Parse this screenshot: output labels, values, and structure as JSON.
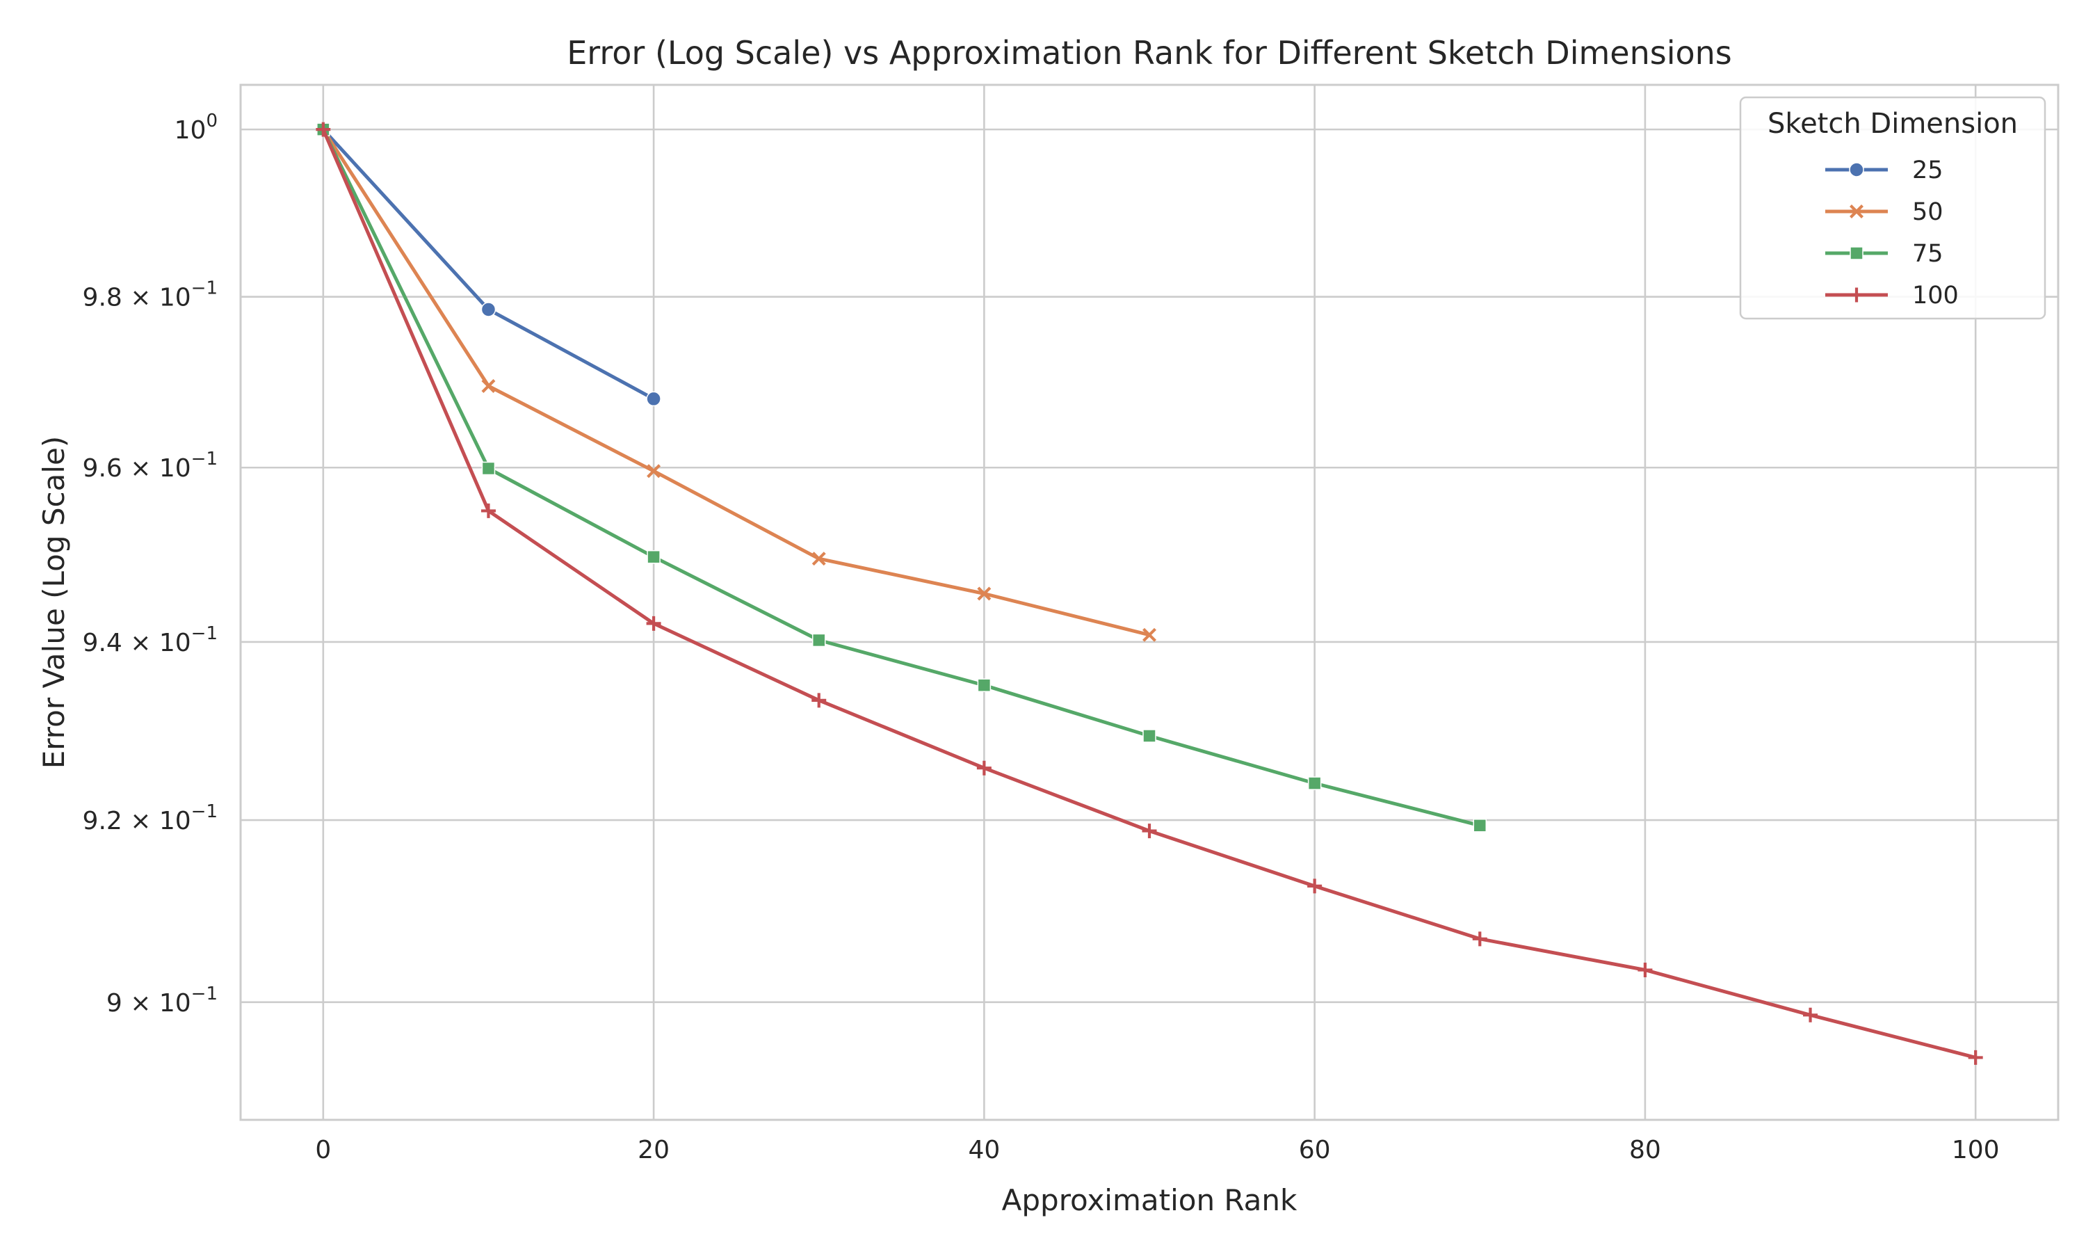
{
  "chart_data": {
    "type": "line",
    "title": "Error (Log Scale) vs Approximation Rank for Different Sketch Dimensions",
    "xlabel": "Approximation Rank",
    "ylabel": "Error Value (Log Scale)",
    "y_scale": "log",
    "xlim": [
      -5,
      105
    ],
    "ylim": [
      0.8873,
      1.0054
    ],
    "x_ticks": [
      0,
      20,
      40,
      60,
      80,
      100
    ],
    "y_ticks": [
      {
        "value": 1.0,
        "mantissa": "",
        "base": "10",
        "exponent": "0"
      },
      {
        "value": 0.98,
        "mantissa": "9.8",
        "base": "10",
        "exponent": "−1"
      },
      {
        "value": 0.96,
        "mantissa": "9.6",
        "base": "10",
        "exponent": "−1"
      },
      {
        "value": 0.94,
        "mantissa": "9.4",
        "base": "10",
        "exponent": "−1"
      },
      {
        "value": 0.92,
        "mantissa": "9.2",
        "base": "10",
        "exponent": "−1"
      },
      {
        "value": 0.9,
        "mantissa": "9",
        "base": "10",
        "exponent": "−1"
      }
    ],
    "grid": true,
    "legend": {
      "title": "Sketch Dimension",
      "position": "top-right"
    },
    "series": [
      {
        "name": "25",
        "color": "#4c72b0",
        "marker": "circle",
        "x": [
          0,
          10,
          20
        ],
        "y": [
          1.0,
          0.9785,
          0.968
        ]
      },
      {
        "name": "50",
        "color": "#dd8452",
        "marker": "x",
        "x": [
          0,
          10,
          20,
          30,
          40,
          50
        ],
        "y": [
          1.0,
          0.9695,
          0.9596,
          0.9495,
          0.9455,
          0.9408
        ]
      },
      {
        "name": "75",
        "color": "#55a868",
        "marker": "square",
        "x": [
          0,
          10,
          20,
          30,
          40,
          50,
          60,
          70
        ],
        "y": [
          1.0,
          0.9599,
          0.9497,
          0.9402,
          0.9351,
          0.9294,
          0.9241,
          0.9194
        ]
      },
      {
        "name": "100",
        "color": "#c44e52",
        "marker": "plus",
        "x": [
          0,
          10,
          20,
          30,
          40,
          50,
          60,
          70,
          80,
          90,
          100
        ],
        "y": [
          1.0,
          0.955,
          0.9421,
          0.9334,
          0.9258,
          0.9188,
          0.9127,
          0.9069,
          0.9035,
          0.8986,
          0.894
        ]
      }
    ]
  }
}
